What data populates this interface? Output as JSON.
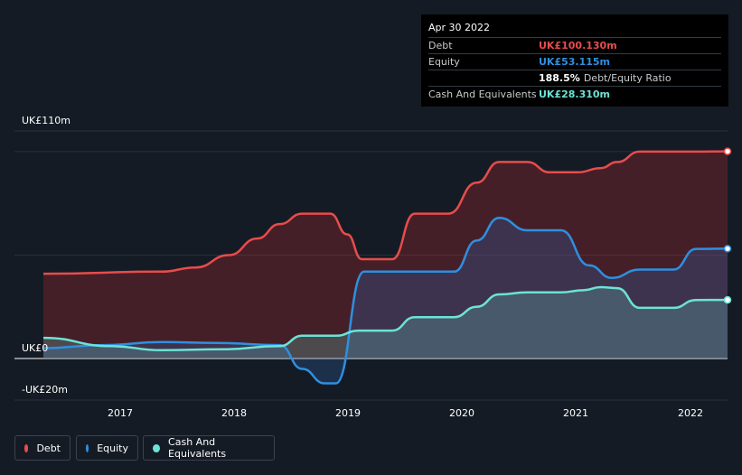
{
  "tooltip": {
    "date": "Apr 30 2022",
    "rows": [
      {
        "label": "Debt",
        "value": "UK£100.130m",
        "color": "#e84c4c",
        "suffix": ""
      },
      {
        "label": "Equity",
        "value": "UK£53.115m",
        "color": "#2f8fe0",
        "suffix": ""
      },
      {
        "label": "",
        "value": "188.5%",
        "color": "#ffffff",
        "suffix": "Debt/Equity Ratio"
      },
      {
        "label": "Cash And Equivalents",
        "value": "UK£28.310m",
        "color": "#6ce3d6",
        "suffix": ""
      }
    ]
  },
  "legend": [
    {
      "label": "Debt",
      "color": "#e84c4c"
    },
    {
      "label": "Equity",
      "color": "#2f8fe0"
    },
    {
      "label": "Cash And Equivalents",
      "color": "#6ce3d6"
    }
  ],
  "chart_data": {
    "type": "area",
    "y_tick_labels": [
      "UK£110m",
      "UK£0",
      "-UK£20m"
    ],
    "ylim": [
      -20,
      110
    ],
    "x_tick_labels": [
      "2017",
      "2018",
      "2019",
      "2020",
      "2021",
      "2022"
    ],
    "xlim": [
      2016.25,
      2022.33
    ],
    "grid": true,
    "legend_position": "bottom-left",
    "series": [
      {
        "name": "Debt",
        "color": "#e84c4c",
        "x": [
          2016.25,
          2017.3,
          2017.6,
          2017.9,
          2018.15,
          2018.35,
          2018.55,
          2018.8,
          2018.95,
          2019.08,
          2019.35,
          2019.55,
          2019.85,
          2020.1,
          2020.3,
          2020.55,
          2020.75,
          2021.0,
          2021.2,
          2021.35,
          2021.55,
          2021.85,
          2022.05,
          2022.33
        ],
        "y": [
          41,
          42,
          44,
          50,
          58,
          65,
          70,
          70,
          60,
          48,
          48,
          70,
          70,
          85,
          95,
          95,
          90,
          90,
          92,
          95,
          100,
          100,
          100,
          100.13
        ]
      },
      {
        "name": "Equity",
        "color": "#2f8fe0",
        "x": [
          2016.25,
          2016.8,
          2017.3,
          2017.8,
          2018.35,
          2018.55,
          2018.75,
          2018.85,
          2019.1,
          2019.35,
          2019.6,
          2019.9,
          2020.1,
          2020.3,
          2020.55,
          2020.85,
          2021.1,
          2021.3,
          2021.55,
          2021.85,
          2022.05,
          2022.33
        ],
        "y": [
          5,
          6.5,
          8,
          7.5,
          6.5,
          -5,
          -12,
          -12,
          42,
          42,
          42,
          42,
          57,
          68,
          62,
          62,
          45,
          39,
          43,
          43,
          53,
          53.115
        ]
      },
      {
        "name": "Cash And Equivalents",
        "color": "#6ce3d6",
        "x": [
          2016.25,
          2016.85,
          2017.3,
          2017.85,
          2018.35,
          2018.55,
          2018.85,
          2019.05,
          2019.35,
          2019.55,
          2019.9,
          2020.1,
          2020.3,
          2020.55,
          2020.85,
          2021.05,
          2021.2,
          2021.35,
          2021.55,
          2021.85,
          2022.05,
          2022.33
        ],
        "y": [
          10,
          6,
          4,
          4.5,
          6,
          11,
          11,
          13.5,
          13.5,
          20,
          20,
          25,
          31,
          32,
          32,
          33,
          34.5,
          34,
          24.5,
          24.5,
          28.3,
          28.31
        ]
      }
    ]
  }
}
